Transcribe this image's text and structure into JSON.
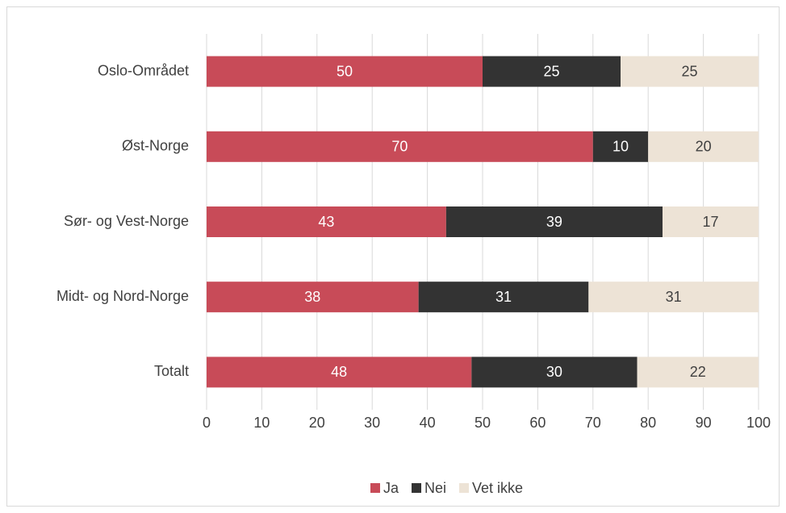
{
  "chart_data": {
    "type": "stacked-barh",
    "categories": [
      "Oslo-Området",
      "Øst-Norge",
      "Sør- og Vest-Norge",
      "Midt- og Nord-Norge",
      "Totalt"
    ],
    "series": [
      {
        "name": "Ja",
        "color": "#c84b58",
        "values": [
          50,
          70,
          43.4,
          38.4,
          48
        ],
        "value_labels": [
          "50",
          "70",
          "43",
          "38",
          "48"
        ]
      },
      {
        "name": "Nei",
        "color": "#333333",
        "values": [
          25,
          10,
          39.2,
          30.8,
          30
        ],
        "value_labels": [
          "25",
          "10",
          "39",
          "31",
          "30"
        ]
      },
      {
        "name": "Vet ikke",
        "color": "#ede3d6",
        "values": [
          25,
          20,
          17.4,
          30.8,
          22
        ],
        "value_labels": [
          "25",
          "20",
          "17",
          "31",
          "22"
        ]
      }
    ],
    "xlim": [
      0,
      100
    ],
    "xticks": [
      0,
      10,
      20,
      30,
      40,
      50,
      60,
      70,
      80,
      90,
      100
    ],
    "grid": true,
    "legend": "bottom"
  }
}
